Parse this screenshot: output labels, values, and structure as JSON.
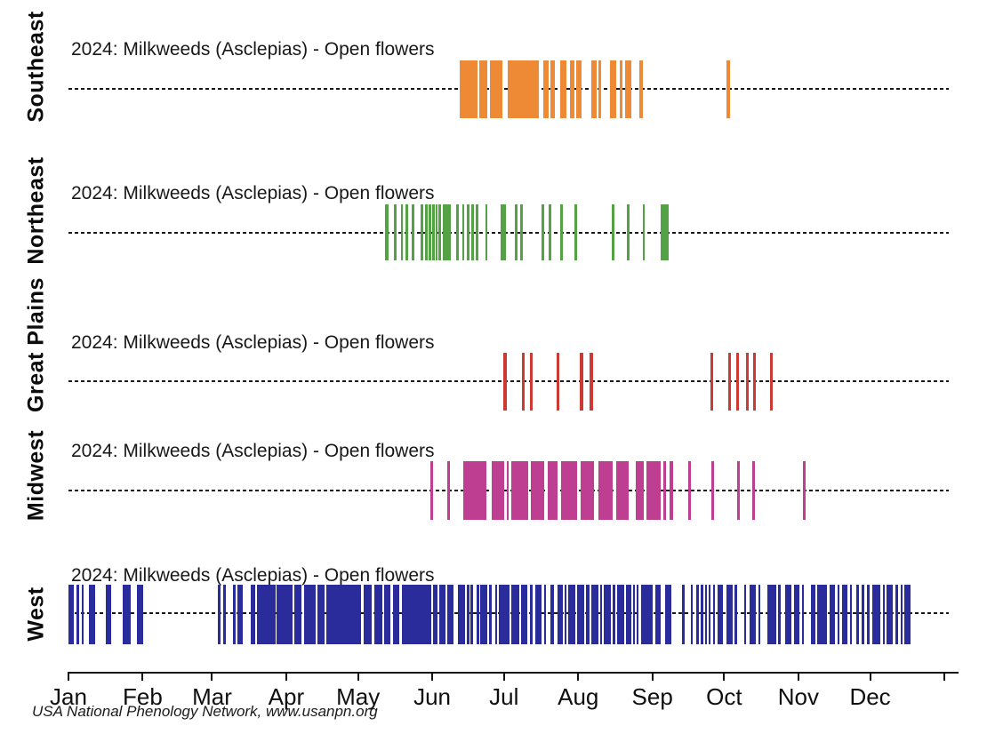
{
  "chart_data": {
    "type": "event-timeline-rug",
    "year": "2024",
    "description": "Days with 'Open flowers' phenophase observed for Milkweeds (Asclepias) in 2024, by US region; x axis is day of year (Jan-Dec), bars mark observation dates",
    "x_axis": {
      "tick_labels": [
        "Jan",
        "Feb",
        "Mar",
        "Apr",
        "May",
        "Jun",
        "Jul",
        "Aug",
        "Sep",
        "Oct",
        "Nov",
        "Dec"
      ],
      "tick_days": [
        0,
        31,
        60,
        91,
        121,
        152,
        182,
        213,
        244,
        274,
        305,
        335
      ],
      "end_day": 366,
      "grid": false
    },
    "series": [
      {
        "name": "Southeast",
        "title": "2024: Milkweeds (Asclepias) - Open flowers",
        "color": "#EE8A35",
        "segments_day_of_year": [
          [
            163.5,
            170.9
          ],
          [
            171.7,
            175.0
          ],
          [
            176.1,
            181.3
          ],
          [
            183.6,
            196.6
          ],
          [
            198.4,
            200.7
          ],
          [
            201.4,
            203.3
          ],
          [
            205.5,
            208.1
          ],
          [
            209.6,
            211.4
          ],
          [
            212.2,
            214.4
          ],
          [
            218.5,
            220.7
          ],
          [
            221.5,
            222.6
          ],
          [
            226.3,
            228.9
          ],
          [
            230.4,
            231.5
          ],
          [
            232.6,
            235.2
          ],
          [
            238.6,
            240.0
          ],
          [
            275.0,
            276.4
          ]
        ]
      },
      {
        "name": "Northeast",
        "title": "2024: Milkweeds (Asclepias) - Open flowers",
        "color": "#55A145",
        "segments_day_of_year": [
          [
            132.3,
            133.6
          ],
          [
            136.0,
            137.1
          ],
          [
            138.8,
            139.9
          ],
          [
            140.8,
            142.0
          ],
          [
            143.4,
            144.5
          ],
          [
            147.0,
            148.3
          ],
          [
            149.0,
            150.1
          ],
          [
            150.5,
            151.4
          ],
          [
            152.0,
            152.9
          ],
          [
            153.3,
            154.0
          ],
          [
            154.6,
            155.7
          ],
          [
            156.4,
            159.8
          ],
          [
            162.0,
            163.1
          ],
          [
            164.6,
            165.5
          ],
          [
            166.5,
            167.4
          ],
          [
            168.3,
            169.3
          ],
          [
            170.2,
            170.9
          ],
          [
            174.1,
            175.0
          ],
          [
            180.6,
            182.8
          ],
          [
            186.5,
            187.6
          ],
          [
            188.8,
            189.7
          ],
          [
            197.7,
            198.8
          ],
          [
            200.7,
            201.8
          ],
          [
            205.5,
            206.4
          ],
          [
            211.6,
            212.5
          ],
          [
            227.0,
            228.1
          ],
          [
            233.3,
            234.3
          ],
          [
            239.9,
            240.8
          ],
          [
            247.3,
            250.8
          ]
        ]
      },
      {
        "name": "Great Plains",
        "title": "2024: Milkweeds (Asclepias) - Open flowers",
        "color": "#CC3B33",
        "segments_day_of_year": [
          [
            181.7,
            183.2
          ],
          [
            189.5,
            190.6
          ],
          [
            192.9,
            194.0
          ],
          [
            204.0,
            205.1
          ],
          [
            213.7,
            215.0
          ],
          [
            217.9,
            219.2
          ],
          [
            268.1,
            269.4
          ],
          [
            275.7,
            277.0
          ],
          [
            278.9,
            280.2
          ],
          [
            283.1,
            284.3
          ],
          [
            286.1,
            287.4
          ],
          [
            293.0,
            294.3
          ]
        ]
      },
      {
        "name": "Midwest",
        "title": "2024: Milkweeds (Asclepias) - Open flowers",
        "color": "#BE3E92",
        "segments_day_of_year": [
          [
            151.2,
            152.3
          ],
          [
            158.3,
            159.4
          ],
          [
            165.0,
            174.6
          ],
          [
            176.9,
            182.1
          ],
          [
            183.0,
            183.9
          ],
          [
            185.0,
            192.1
          ],
          [
            193.2,
            198.8
          ],
          [
            200.3,
            204.4
          ],
          [
            205.9,
            212.5
          ],
          [
            214.0,
            219.6
          ],
          [
            221.5,
            227.4
          ],
          [
            228.9,
            234.1
          ],
          [
            237.1,
            240.4
          ],
          [
            241.5,
            247.5
          ],
          [
            248.6,
            249.7
          ],
          [
            251.2,
            252.7
          ],
          [
            259.0,
            260.1
          ],
          [
            268.6,
            269.8
          ],
          [
            279.4,
            280.4
          ],
          [
            285.8,
            286.9
          ],
          [
            306.9,
            308.2
          ]
        ]
      },
      {
        "name": "West",
        "title": "2024: Milkweeds (Asclepias) - Open flowers",
        "color": "#2B2C9C",
        "segments_day_of_year": [
          [
            0.0,
            2.4
          ],
          [
            3.3,
            4.6
          ],
          [
            5.4,
            6.3
          ],
          [
            8.5,
            11.1
          ],
          [
            15.6,
            17.8
          ],
          [
            22.7,
            26.2
          ],
          [
            28.6,
            31.2
          ],
          [
            62.4,
            63.7
          ],
          [
            64.5,
            65.6
          ],
          [
            68.9,
            69.9
          ],
          [
            70.6,
            72.8
          ],
          [
            76.0,
            78.0
          ],
          [
            78.8,
            86.4
          ],
          [
            87.1,
            93.5
          ],
          [
            94.2,
            97.5
          ],
          [
            98.3,
            103.3
          ],
          [
            104.0,
            107.0
          ],
          [
            107.6,
            122.4
          ],
          [
            123.5,
            126.8
          ],
          [
            127.7,
            131.2
          ],
          [
            131.8,
            134.6
          ],
          [
            135.5,
            138.3
          ],
          [
            139.3,
            151.6
          ],
          [
            152.5,
            154.1
          ],
          [
            154.9,
            157.4
          ],
          [
            158.4,
            160.9
          ],
          [
            162.8,
            165.6
          ],
          [
            166.5,
            167.3
          ],
          [
            168.1,
            168.9
          ],
          [
            170.6,
            171.4
          ],
          [
            172.0,
            175.1
          ],
          [
            175.8,
            176.7
          ],
          [
            178.2,
            179.2
          ],
          [
            179.7,
            184.2
          ],
          [
            185.0,
            188.4
          ],
          [
            189.1,
            191.8
          ],
          [
            192.9,
            193.7
          ],
          [
            195.0,
            197.8
          ],
          [
            198.7,
            199.5
          ],
          [
            201.5,
            202.8
          ],
          [
            204.3,
            206.7
          ],
          [
            207.3,
            208.2
          ],
          [
            208.9,
            211.7
          ],
          [
            212.6,
            215.7
          ],
          [
            216.4,
            217.6
          ],
          [
            218.5,
            221.4
          ],
          [
            222.2,
            223.1
          ],
          [
            223.8,
            226.8
          ],
          [
            227.5,
            228.4
          ],
          [
            229.3,
            232.1
          ],
          [
            233.0,
            235.2
          ],
          [
            235.9,
            236.7
          ],
          [
            237.4,
            238.3
          ],
          [
            239.2,
            244.1
          ],
          [
            245.1,
            247.6
          ],
          [
            249.4,
            251.9
          ],
          [
            256.5,
            257.5
          ],
          [
            260.0,
            261.0
          ],
          [
            262.5,
            263.5
          ],
          [
            264.3,
            265.2
          ],
          [
            265.9,
            266.9
          ],
          [
            267.4,
            268.4
          ],
          [
            269.3,
            270.1
          ],
          [
            271.1,
            273.6
          ],
          [
            275.1,
            277.6
          ],
          [
            278.3,
            279.3
          ],
          [
            282.3,
            283.3
          ],
          [
            284.7,
            287.2
          ],
          [
            288.2,
            289.0
          ],
          [
            292.2,
            295.7
          ],
          [
            296.5,
            297.8
          ],
          [
            299.6,
            302.1
          ],
          [
            303.1,
            305.5
          ],
          [
            306.4,
            307.3
          ],
          [
            310.2,
            312.0
          ],
          [
            313.0,
            317.0
          ],
          [
            318.0,
            320.4
          ],
          [
            321.3,
            322.2
          ],
          [
            323.2,
            325.6
          ],
          [
            326.6,
            327.5
          ],
          [
            329.3,
            330.3
          ],
          [
            331.6,
            332.4
          ],
          [
            333.7,
            334.6
          ],
          [
            335.8,
            339.3
          ],
          [
            340.3,
            341.1
          ],
          [
            342.0,
            344.5
          ],
          [
            345.5,
            346.5
          ],
          [
            347.7,
            348.5
          ],
          [
            349.4,
            351.9
          ]
        ]
      }
    ],
    "footer": "USA National Phenology Network, www.usanpn.org",
    "colors": {
      "axis": "#141414",
      "baseline_dotted": "#161616",
      "text": "#0f0f0f"
    }
  }
}
